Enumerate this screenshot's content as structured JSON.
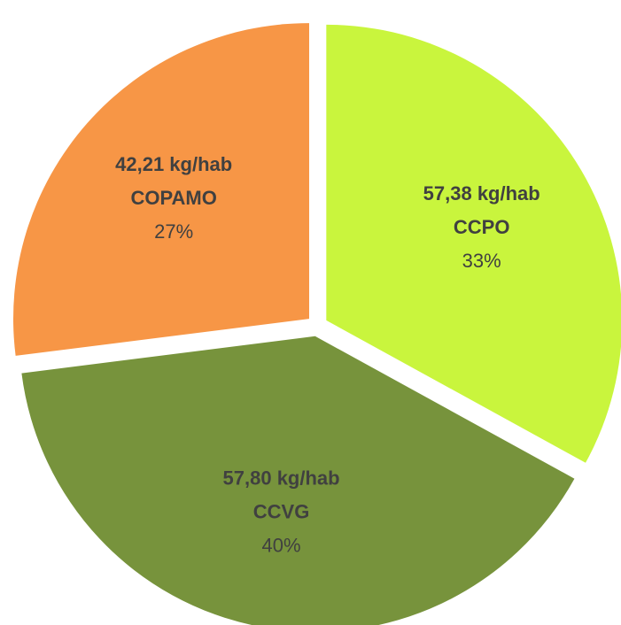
{
  "chart_data": {
    "type": "pie",
    "categories": [
      "CCPO",
      "CCVG",
      "COPAMO"
    ],
    "values": [
      33,
      40,
      27
    ],
    "value_labels": [
      "33%",
      "40%",
      "27%"
    ],
    "amount_labels": [
      "57,38 kg/hab",
      "57,80 kg/hab",
      "42,21 kg/hab"
    ],
    "colors": [
      "#c9f53d",
      "#77933c",
      "#f79646"
    ]
  }
}
